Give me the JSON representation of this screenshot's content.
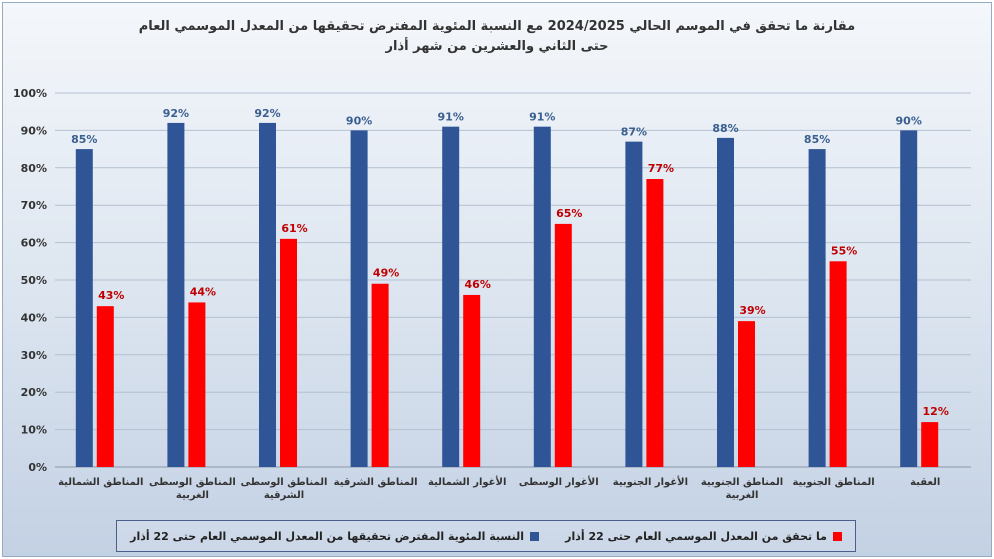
{
  "title_lines": [
    "مقارنة ما تحقق في الموسم الحالي 2024/2025  مع النسبة المئوية المفترض تحقيقها من المعدل الموسمي العام",
    "حتى الثاني والعشرين من شهر أذار"
  ],
  "chart_data": {
    "type": "bar",
    "title": "مقارنة ما تحقق في الموسم الحالي 2024/2025  مع النسبة المئوية المفترض تحقيقها من المعدل الموسمي العام حتى الثاني والعشرين من شهر أذار",
    "categories": [
      [
        "المناطق الشمالية"
      ],
      [
        "المناطق الوسطى",
        "الغربية"
      ],
      [
        "المناطق الوسطى",
        "الشرقية"
      ],
      [
        "المناطق الشرقية"
      ],
      [
        "الأغوار الشمالية"
      ],
      [
        "الأغوار الوسطى"
      ],
      [
        "الأغوار الجنوبية"
      ],
      [
        "المناطق الجنوبية",
        "الغربية"
      ],
      [
        "المناطق الجنوبية"
      ],
      [
        "العقبة"
      ]
    ],
    "series": [
      {
        "name": "النسبة المئوية المفترض تحقيقها من المعدل الموسمي العام حتى 22 أذار",
        "color": "#2f5597",
        "values": [
          85,
          92,
          92,
          90,
          91,
          91,
          87,
          88,
          85,
          90
        ],
        "labels": [
          "85%",
          "92%",
          "92%",
          "90%",
          "91%",
          "91%",
          "87%",
          "88%",
          "85%",
          "90%"
        ]
      },
      {
        "name": "ما تحقق من  المعدل الموسمي العام حتى 22 أذار",
        "color": "#ff0000",
        "values": [
          43,
          44,
          61,
          49,
          46,
          65,
          77,
          39,
          55,
          12
        ],
        "labels": [
          "43%",
          "44%",
          "61%",
          "49%",
          "46%",
          "65%",
          "77%",
          "39%",
          "55%",
          "12%"
        ]
      }
    ],
    "yticks": [
      "0%",
      "10%",
      "20%",
      "30%",
      "40%",
      "50%",
      "60%",
      "70%",
      "80%",
      "90%",
      "100%"
    ],
    "ylim": [
      0,
      100
    ],
    "grid": true,
    "legend_position": "bottom"
  },
  "legend": {
    "blue_label": "النسبة المئوية المفترض تحقيقها من المعدل الموسمي العام حتى 22 أذار",
    "red_label": "ما تحقق من  المعدل الموسمي العام حتى 22 أذار",
    "blue_color": "#2f5597",
    "red_color": "#ff0000"
  }
}
